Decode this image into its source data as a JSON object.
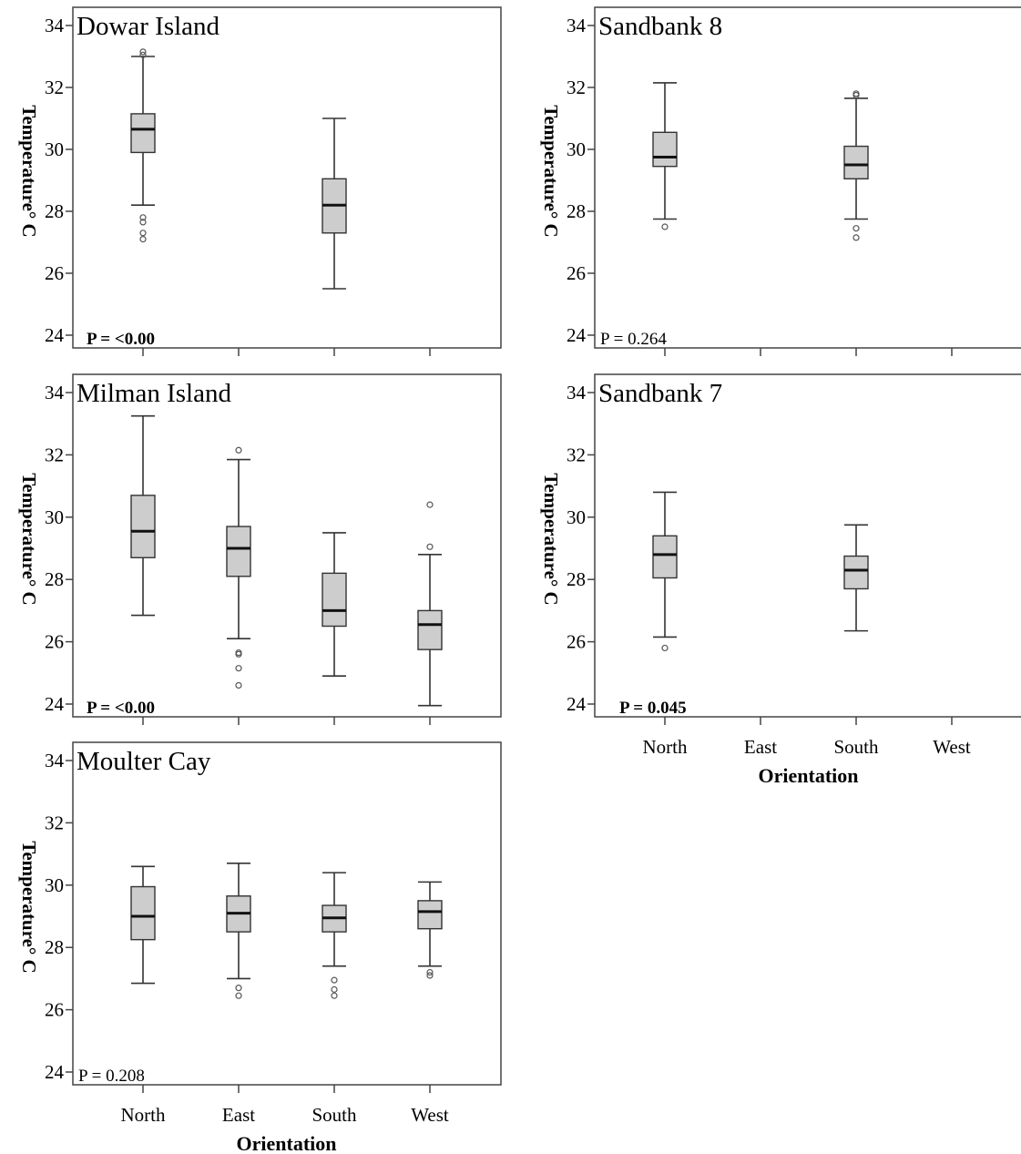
{
  "chart_data": [
    {
      "type": "boxplot",
      "title": "Dowar Island",
      "ylabel": "Temperature° C",
      "xlabel": "",
      "categories": [
        "North",
        "East",
        "South",
        "West"
      ],
      "show_category_labels": false,
      "ylim": [
        24,
        34
      ],
      "yticks": [
        24,
        26,
        28,
        30,
        32,
        34
      ],
      "p_value": "P = <0.00",
      "p_value_bold": true,
      "series": [
        {
          "category": "North",
          "whisker_low": 28.2,
          "q1": 29.9,
          "median": 30.65,
          "q3": 31.15,
          "whisker_high": 33.0,
          "outliers": [
            27.1,
            27.3,
            27.65,
            27.8,
            33.05,
            33.15
          ]
        },
        {
          "category": "South",
          "whisker_low": 25.5,
          "q1": 27.3,
          "median": 28.2,
          "q3": 29.05,
          "whisker_high": 31.0,
          "outliers": []
        }
      ]
    },
    {
      "type": "boxplot",
      "title": "Sandbank 8",
      "ylabel": "Temperature° C",
      "xlabel": "",
      "categories": [
        "North",
        "East",
        "South",
        "West"
      ],
      "show_category_labels": false,
      "ylim": [
        24,
        34
      ],
      "yticks": [
        24,
        26,
        28,
        30,
        32,
        34
      ],
      "p_value": "P = 0.264",
      "p_value_bold": false,
      "series": [
        {
          "category": "North",
          "whisker_low": 27.75,
          "q1": 29.45,
          "median": 29.75,
          "q3": 30.55,
          "whisker_high": 32.15,
          "outliers": [
            27.5
          ]
        },
        {
          "category": "South",
          "whisker_low": 27.75,
          "q1": 29.05,
          "median": 29.5,
          "q3": 30.1,
          "whisker_high": 31.65,
          "outliers": [
            27.15,
            27.45,
            31.75,
            31.8
          ]
        }
      ]
    },
    {
      "type": "boxplot",
      "title": "Milman Island",
      "ylabel": "Temperature° C",
      "xlabel": "",
      "categories": [
        "North",
        "East",
        "South",
        "West"
      ],
      "show_category_labels": false,
      "ylim": [
        24,
        34
      ],
      "yticks": [
        24,
        26,
        28,
        30,
        32,
        34
      ],
      "p_value": "P = <0.00",
      "p_value_bold": true,
      "series": [
        {
          "category": "North",
          "whisker_low": 26.85,
          "q1": 28.7,
          "median": 29.55,
          "q3": 30.7,
          "whisker_high": 33.25,
          "outliers": []
        },
        {
          "category": "East",
          "whisker_low": 26.1,
          "q1": 28.1,
          "median": 29.0,
          "q3": 29.7,
          "whisker_high": 31.85,
          "outliers": [
            24.6,
            25.15,
            25.6,
            25.65,
            32.15
          ]
        },
        {
          "category": "South",
          "whisker_low": 24.9,
          "q1": 26.5,
          "median": 27.0,
          "q3": 28.2,
          "whisker_high": 29.5,
          "outliers": []
        },
        {
          "category": "West",
          "whisker_low": 23.95,
          "q1": 25.75,
          "median": 26.55,
          "q3": 27.0,
          "whisker_high": 28.8,
          "outliers": [
            29.05,
            30.4
          ]
        }
      ]
    },
    {
      "type": "boxplot",
      "title": "Sandbank 7",
      "ylabel": "Temperature° C",
      "xlabel": "Orientation",
      "categories": [
        "North",
        "East",
        "South",
        "West"
      ],
      "show_category_labels": true,
      "ylim": [
        24,
        34
      ],
      "yticks": [
        24,
        26,
        28,
        30,
        32,
        34
      ],
      "p_value": "P = 0.045",
      "p_value_bold": true,
      "series": [
        {
          "category": "North",
          "whisker_low": 26.15,
          "q1": 28.05,
          "median": 28.8,
          "q3": 29.4,
          "whisker_high": 30.8,
          "outliers": [
            25.8
          ]
        },
        {
          "category": "South",
          "whisker_low": 26.35,
          "q1": 27.7,
          "median": 28.3,
          "q3": 28.75,
          "whisker_high": 29.75,
          "outliers": []
        }
      ]
    },
    {
      "type": "boxplot",
      "title": "Moulter Cay",
      "ylabel": "Temperature° C",
      "xlabel": "Orientation",
      "categories": [
        "North",
        "East",
        "South",
        "West"
      ],
      "show_category_labels": true,
      "ylim": [
        24,
        34
      ],
      "yticks": [
        24,
        26,
        28,
        30,
        32,
        34
      ],
      "p_value": "P = 0.208",
      "p_value_bold": false,
      "series": [
        {
          "category": "North",
          "whisker_low": 26.85,
          "q1": 28.25,
          "median": 29.0,
          "q3": 29.95,
          "whisker_high": 30.6,
          "outliers": []
        },
        {
          "category": "East",
          "whisker_low": 27.0,
          "q1": 28.5,
          "median": 29.1,
          "q3": 29.65,
          "whisker_high": 30.7,
          "outliers": [
            26.45,
            26.7
          ]
        },
        {
          "category": "South",
          "whisker_low": 27.4,
          "q1": 28.5,
          "median": 28.95,
          "q3": 29.35,
          "whisker_high": 30.4,
          "outliers": [
            26.45,
            26.65,
            26.95
          ]
        },
        {
          "category": "West",
          "whisker_low": 27.4,
          "q1": 28.6,
          "median": 29.15,
          "q3": 29.5,
          "whisker_high": 30.1,
          "outliers": [
            27.1,
            27.2
          ]
        }
      ]
    }
  ]
}
